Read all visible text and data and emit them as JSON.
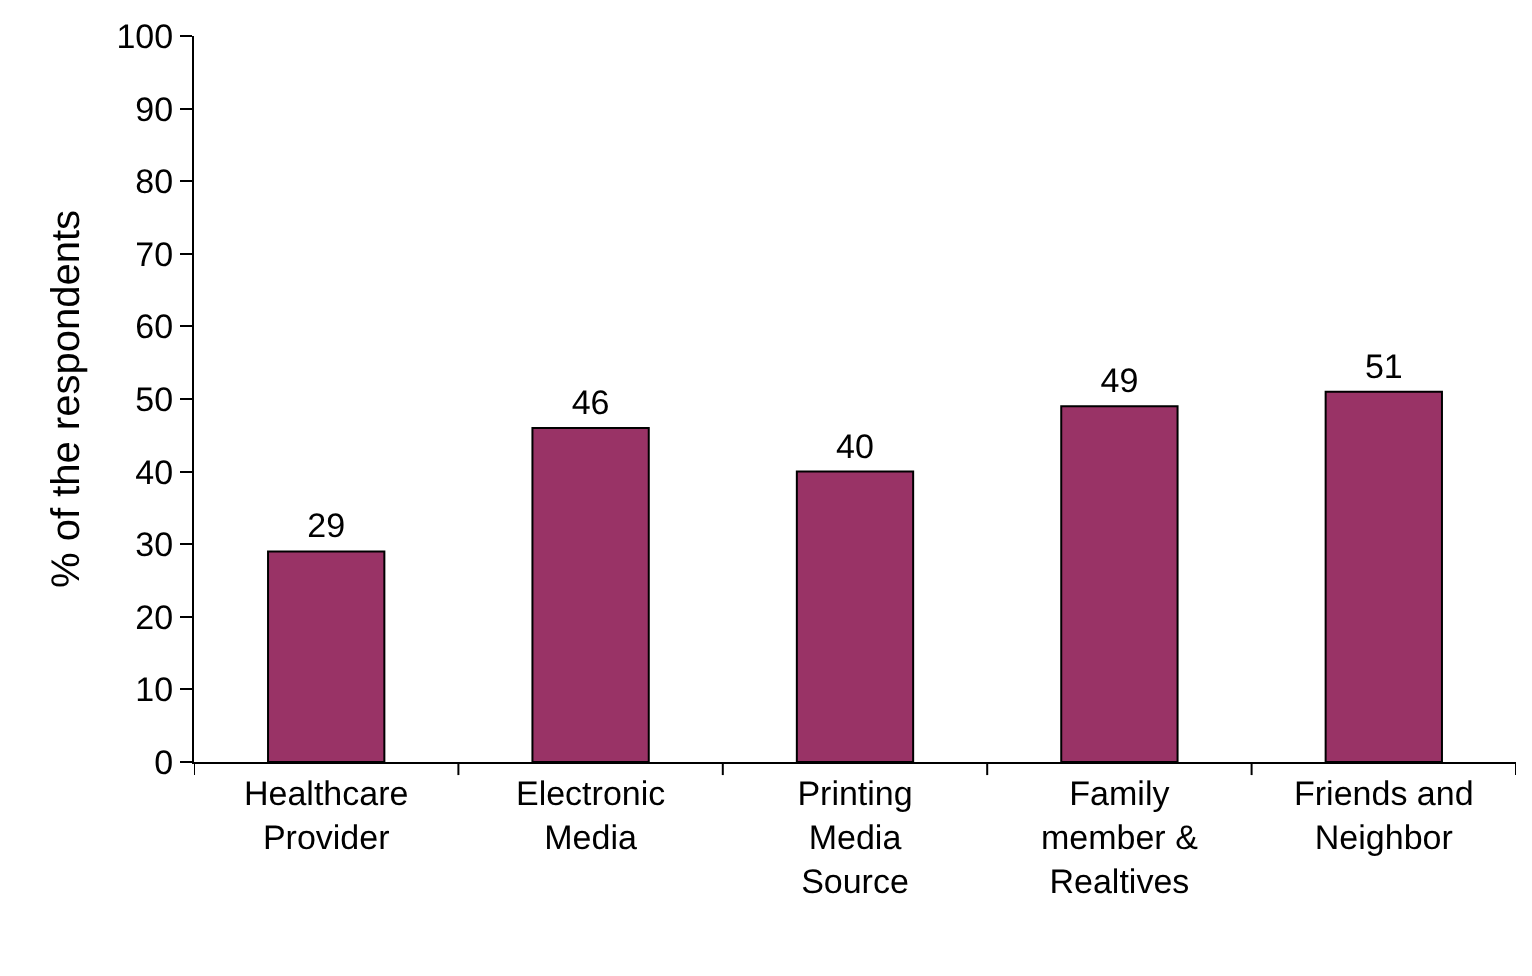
{
  "chart_data": {
    "type": "bar",
    "ylabel": "% of the respondents",
    "categories": [
      "Healthcare Provider",
      "Electronic Media",
      "Printing Media Source",
      "Family member & Realtives",
      "Friends and Neighbor"
    ],
    "values": [
      29,
      46,
      40,
      49,
      51
    ],
    "color": "#993366",
    "ylim": [
      0,
      100
    ],
    "yticks": [
      0,
      10,
      20,
      30,
      40,
      50,
      60,
      70,
      80,
      90,
      100
    ],
    "grid": false,
    "data_labels": true
  }
}
